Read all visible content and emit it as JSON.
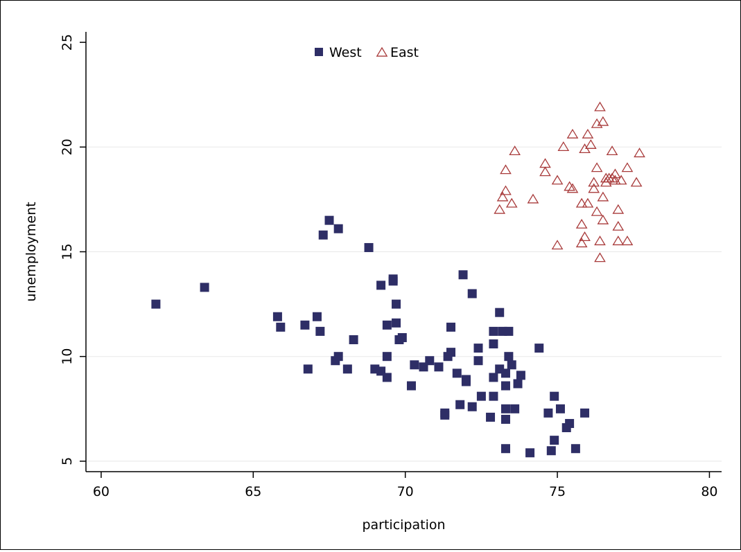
{
  "chart_data": {
    "type": "scatter",
    "xlabel": "participation",
    "ylabel": "unemployment",
    "xlim": [
      59.5,
      80.4
    ],
    "ylim": [
      4.5,
      25.5
    ],
    "xticks": [
      60,
      65,
      70,
      75,
      80
    ],
    "yticks": [
      5,
      10,
      15,
      20,
      25
    ],
    "grid": "horizontal",
    "legend_position": "top",
    "colors": {
      "west": "#2e2e66",
      "east": "#a83a3a",
      "grid": "#e8e8e8",
      "axis": "#000000"
    },
    "series": [
      {
        "name": "West",
        "marker": "filled-square",
        "points": [
          [
            61.8,
            12.5
          ],
          [
            63.4,
            13.3
          ],
          [
            65.8,
            11.9
          ],
          [
            65.9,
            11.4
          ],
          [
            66.7,
            11.5
          ],
          [
            66.8,
            9.4
          ],
          [
            67.1,
            11.9
          ],
          [
            67.2,
            11.2
          ],
          [
            67.3,
            15.8
          ],
          [
            67.5,
            16.5
          ],
          [
            67.8,
            16.1
          ],
          [
            67.8,
            10.0
          ],
          [
            67.7,
            9.8
          ],
          [
            68.1,
            9.4
          ],
          [
            68.3,
            10.8
          ],
          [
            68.8,
            15.2
          ],
          [
            69.0,
            9.4
          ],
          [
            69.2,
            13.4
          ],
          [
            69.2,
            9.3
          ],
          [
            69.4,
            10.0
          ],
          [
            69.4,
            11.5
          ],
          [
            69.4,
            9.0
          ],
          [
            69.6,
            13.6
          ],
          [
            69.6,
            13.7
          ],
          [
            69.7,
            11.6
          ],
          [
            69.7,
            12.5
          ],
          [
            69.8,
            10.8
          ],
          [
            69.9,
            10.9
          ],
          [
            70.2,
            8.6
          ],
          [
            70.3,
            9.6
          ],
          [
            70.6,
            9.5
          ],
          [
            70.8,
            9.8
          ],
          [
            71.1,
            9.5
          ],
          [
            71.3,
            7.2
          ],
          [
            71.3,
            7.3
          ],
          [
            71.4,
            10.0
          ],
          [
            71.5,
            11.4
          ],
          [
            71.5,
            10.2
          ],
          [
            71.7,
            9.2
          ],
          [
            71.8,
            7.7
          ],
          [
            71.9,
            13.9
          ],
          [
            72.0,
            8.9
          ],
          [
            72.0,
            8.8
          ],
          [
            72.2,
            13.0
          ],
          [
            72.2,
            7.6
          ],
          [
            72.4,
            10.4
          ],
          [
            72.4,
            9.8
          ],
          [
            72.5,
            8.1
          ],
          [
            72.8,
            7.1
          ],
          [
            72.9,
            8.1
          ],
          [
            72.9,
            10.6
          ],
          [
            72.9,
            11.2
          ],
          [
            72.9,
            9.0
          ],
          [
            73.1,
            9.4
          ],
          [
            73.1,
            12.1
          ],
          [
            73.2,
            11.2
          ],
          [
            73.3,
            9.2
          ],
          [
            73.3,
            8.6
          ],
          [
            73.3,
            5.6
          ],
          [
            73.3,
            7.0
          ],
          [
            73.3,
            7.5
          ],
          [
            73.4,
            11.2
          ],
          [
            73.4,
            10.0
          ],
          [
            73.5,
            9.6
          ],
          [
            73.6,
            7.5
          ],
          [
            73.7,
            8.7
          ],
          [
            73.8,
            9.1
          ],
          [
            74.1,
            5.4
          ],
          [
            74.4,
            10.4
          ],
          [
            74.7,
            7.3
          ],
          [
            74.8,
            5.5
          ],
          [
            74.9,
            6.0
          ],
          [
            74.9,
            8.1
          ],
          [
            75.1,
            7.5
          ],
          [
            75.3,
            6.6
          ],
          [
            75.4,
            6.8
          ],
          [
            75.6,
            5.6
          ],
          [
            75.9,
            7.3
          ]
        ]
      },
      {
        "name": "East",
        "marker": "hollow-triangle",
        "points": [
          [
            73.1,
            17.0
          ],
          [
            73.2,
            17.6
          ],
          [
            73.3,
            17.9
          ],
          [
            73.3,
            18.9
          ],
          [
            73.5,
            17.3
          ],
          [
            73.6,
            19.8
          ],
          [
            74.2,
            17.5
          ],
          [
            74.6,
            19.2
          ],
          [
            74.6,
            18.8
          ],
          [
            75.0,
            15.3
          ],
          [
            75.0,
            18.4
          ],
          [
            75.2,
            20.0
          ],
          [
            75.4,
            18.1
          ],
          [
            75.5,
            18.0
          ],
          [
            75.5,
            20.6
          ],
          [
            75.8,
            17.3
          ],
          [
            75.8,
            16.3
          ],
          [
            75.8,
            15.4
          ],
          [
            75.9,
            15.7
          ],
          [
            75.9,
            19.9
          ],
          [
            76.0,
            17.3
          ],
          [
            76.0,
            20.6
          ],
          [
            76.1,
            20.1
          ],
          [
            76.2,
            18.3
          ],
          [
            76.2,
            18.0
          ],
          [
            76.3,
            19.0
          ],
          [
            76.3,
            16.9
          ],
          [
            76.3,
            21.1
          ],
          [
            76.4,
            21.9
          ],
          [
            76.4,
            15.5
          ],
          [
            76.4,
            14.7
          ],
          [
            76.5,
            16.5
          ],
          [
            76.5,
            17.6
          ],
          [
            76.5,
            21.2
          ],
          [
            76.6,
            18.5
          ],
          [
            76.6,
            18.3
          ],
          [
            76.7,
            18.5
          ],
          [
            76.8,
            18.5
          ],
          [
            76.8,
            19.8
          ],
          [
            76.9,
            18.4
          ],
          [
            76.9,
            18.7
          ],
          [
            77.0,
            17.0
          ],
          [
            77.0,
            16.2
          ],
          [
            77.0,
            15.5
          ],
          [
            77.1,
            18.4
          ],
          [
            77.3,
            19.0
          ],
          [
            77.3,
            15.5
          ],
          [
            77.6,
            18.3
          ],
          [
            77.7,
            19.7
          ]
        ]
      }
    ]
  }
}
